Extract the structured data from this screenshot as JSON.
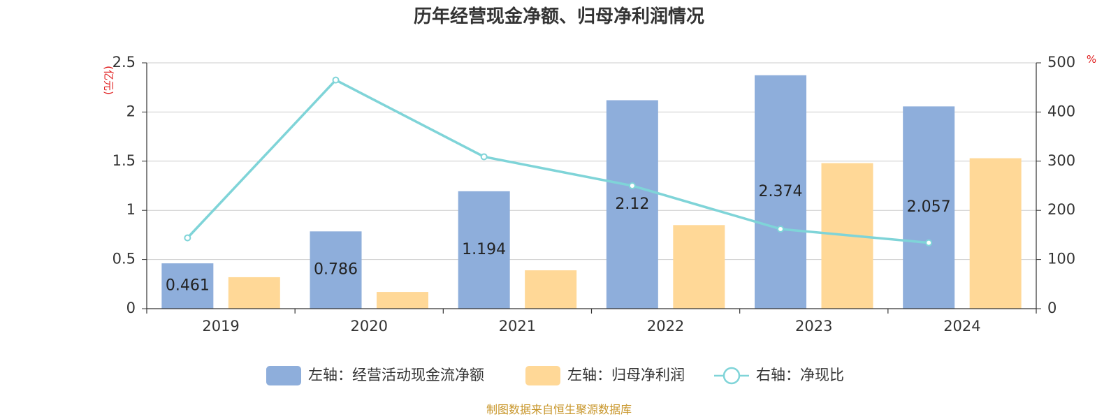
{
  "chart_data": {
    "type": "bar",
    "title": "历年经营现金净额、归母净利润情况",
    "categories": [
      "2019",
      "2020",
      "2021",
      "2022",
      "2023",
      "2024"
    ],
    "left_axis": {
      "unit": "(亿元)",
      "ylim": [
        0,
        2.5
      ],
      "ticks": [
        "0",
        "0.5",
        "1",
        "1.5",
        "2",
        "2.5"
      ]
    },
    "right_axis": {
      "unit": "%",
      "ylim": [
        0,
        500
      ],
      "ticks": [
        "0",
        "100",
        "200",
        "300",
        "400",
        "500"
      ]
    },
    "series": [
      {
        "name": "左轴：经营活动现金流净额",
        "type": "bar",
        "axis": "left",
        "color": "#8eaedb",
        "values": [
          0.461,
          0.786,
          1.194,
          2.12,
          2.374,
          2.057
        ],
        "labels": [
          "0.461",
          "0.786",
          "1.194",
          "2.12",
          "2.374",
          "2.057"
        ]
      },
      {
        "name": "左轴：归母净利润",
        "type": "bar",
        "axis": "left",
        "color": "#ffd897",
        "values": [
          0.32,
          0.17,
          0.39,
          0.85,
          1.48,
          1.53
        ]
      },
      {
        "name": "右轴：净现比",
        "type": "line",
        "axis": "right",
        "color": "#7fd4d8",
        "values": [
          144,
          465,
          309,
          250,
          162,
          134
        ]
      }
    ],
    "grid": true,
    "legend_position": "bottom"
  },
  "source": "制图数据来自恒生聚源数据库"
}
